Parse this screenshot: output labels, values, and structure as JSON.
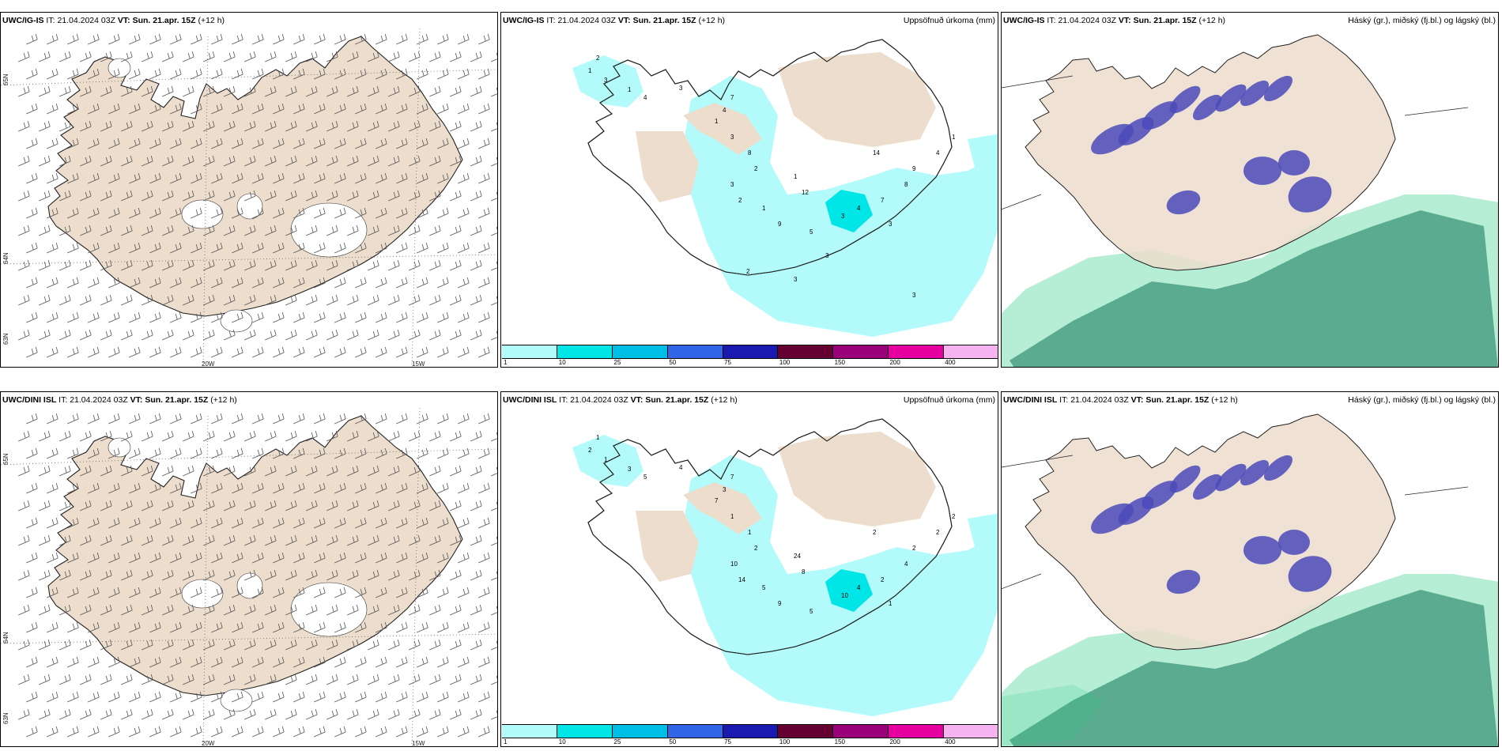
{
  "panels": [
    {
      "row": 0,
      "col": 0,
      "model": "UWC/IG-IS",
      "it_label": "IT:",
      "it": "21.04.2024 03Z",
      "vt_label": "VT:",
      "vt": "Sun. 21.apr. 15Z",
      "lead": "(+12 h)",
      "right_title": ""
    },
    {
      "row": 0,
      "col": 1,
      "model": "UWC/IG-IS",
      "it_label": "IT:",
      "it": "21.04.2024 03Z",
      "vt_label": "VT:",
      "vt": "Sun. 21.apr. 15Z",
      "lead": "(+12 h)",
      "right_title": "Uppsöfnuð úrkoma (mm)"
    },
    {
      "row": 0,
      "col": 2,
      "model": "UWC/IG-IS",
      "it_label": "IT:",
      "it": "21.04.2024 03Z",
      "vt_label": "VT:",
      "vt": "Sun. 21.apr. 15Z",
      "lead": "(+12 h)",
      "right_title": "Háský (gr.), miðský (fj.bl.) og lágský (bl.)"
    },
    {
      "row": 1,
      "col": 0,
      "model": "UWC/DINI ISL",
      "it_label": "IT:",
      "it": "21.04.2024 03Z",
      "vt_label": "VT:",
      "vt": "Sun. 21.apr. 15Z",
      "lead": "(+12 h)",
      "right_title": ""
    },
    {
      "row": 1,
      "col": 1,
      "model": "UWC/DINI ISL",
      "it_label": "IT:",
      "it": "21.04.2024 03Z",
      "vt_label": "VT:",
      "vt": "Sun. 21.apr. 15Z",
      "lead": "(+12 h)",
      "right_title": "Uppsöfnuð úrkoma (mm)"
    },
    {
      "row": 1,
      "col": 2,
      "model": "UWC/DINI ISL",
      "it_label": "IT:",
      "it": "21.04.2024 03Z",
      "vt_label": "VT:",
      "vt": "Sun. 21.apr. 15Z",
      "lead": "(+12 h)",
      "right_title": "Háský (gr.), miðský (fj.bl.) og lágský (bl.)"
    }
  ],
  "wind_map_ticks": {
    "lon1": "20W",
    "lon2": "15W",
    "lat_labels": [
      "65N",
      "64N",
      "63N"
    ]
  },
  "precip_colorbar": {
    "colors": [
      "#b3fbfb",
      "#00e6e6",
      "#00bfe6",
      "#3366e6",
      "#1a1ab3",
      "#660033",
      "#99007a",
      "#e6009f",
      "#f5b3f0"
    ],
    "labels": [
      "1",
      "10",
      "25",
      "50",
      "75",
      "100",
      "150",
      "200",
      "400"
    ]
  },
  "precip_numbers_top": [
    "2",
    "1",
    "3",
    "1",
    "4",
    "3",
    "7",
    "4",
    "1",
    "3",
    "8",
    "2",
    "3",
    "2",
    "1",
    "1",
    "12",
    "9",
    "5",
    "3",
    "4",
    "7",
    "8",
    "9",
    "14",
    "4",
    "1",
    "3",
    "3",
    "3",
    "2",
    "3"
  ],
  "precip_numbers_bottom": [
    "1",
    "2",
    "1",
    "3",
    "5",
    "4",
    "7",
    "3",
    "7",
    "1",
    "1",
    "2",
    "10",
    "14",
    "5",
    "24",
    "8",
    "9",
    "5",
    "10",
    "4",
    "2",
    "4",
    "2",
    "2",
    "2",
    "2",
    "1"
  ],
  "colors": {
    "land": "#ecddcc",
    "sea": "#ffffff",
    "snow": "#ffffff",
    "precip_light": "#b3fbfb",
    "precip_mid": "#00e6e6",
    "cloud_high": "#4a4ab8",
    "cloud_low": "#5aab8f",
    "cloud_edge": "#2ecc88"
  }
}
